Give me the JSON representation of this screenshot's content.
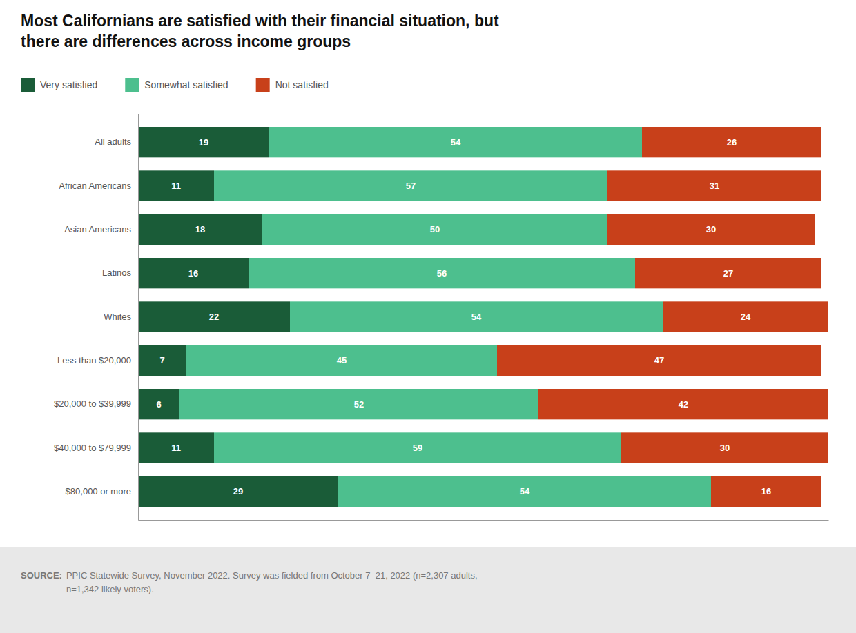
{
  "chart_data": {
    "type": "bar",
    "orientation": "horizontal",
    "stacked": true,
    "data_labels": true,
    "tick_labels": "y",
    "legend": "top",
    "title": "Most Californians are satisfied with their financial situation, but\nthere are differences across income groups",
    "categories": [
      "All adults",
      "African Americans",
      "Asian Americans",
      "Latinos",
      "Whites",
      "Less than $20,000",
      "$20,000 to $39,999",
      "$40,000 to $79,999",
      "$80,000 or more"
    ],
    "series": [
      {
        "name": "Very satisfied",
        "color": "#1a5c38",
        "values": [
          19,
          11,
          18,
          16,
          22,
          7,
          6,
          11,
          29
        ]
      },
      {
        "name": "Somewhat satisfied",
        "color": "#4dbf8e",
        "values": [
          54,
          57,
          50,
          56,
          54,
          45,
          52,
          59,
          54
        ]
      },
      {
        "name": "Not satisfied",
        "color": "#c8401a",
        "values": [
          26,
          31,
          30,
          27,
          24,
          47,
          42,
          30,
          16
        ]
      }
    ],
    "xlim": [
      0,
      100
    ],
    "annotations": [
      "SOURCE:",
      "PPIC Statewide Survey, November 2022. Survey was fielded from October 7–21, 2022 (n=2,307 adults,\nn=1,342 likely voters)."
    ]
  }
}
